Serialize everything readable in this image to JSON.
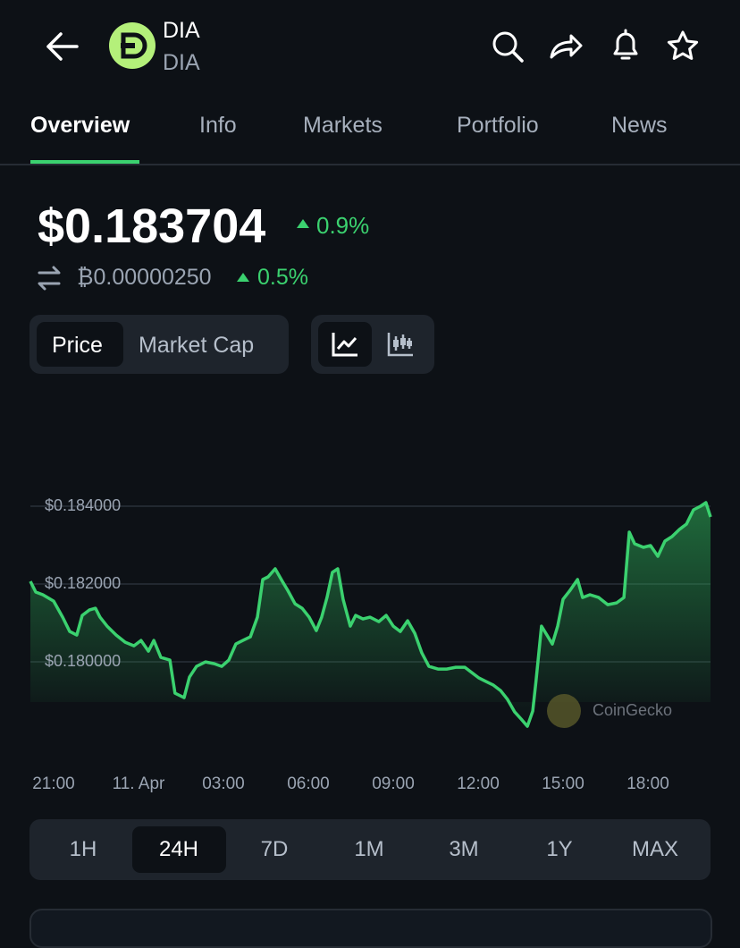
{
  "header": {
    "name": "DIA",
    "symbol": "DIA"
  },
  "tabs": [
    "Overview",
    "Info",
    "Markets",
    "Portfolio",
    "News"
  ],
  "price": {
    "value": "$0.183704",
    "change": "0.9%",
    "btc_value": "₿0.00000250",
    "btc_change": "0.5%"
  },
  "toggles": [
    "Price",
    "Market Cap"
  ],
  "watermark": "CoinGecko",
  "timeframes": [
    "1H",
    "24H",
    "7D",
    "1M",
    "3M",
    "1Y",
    "MAX"
  ],
  "chart_data": {
    "type": "line",
    "color": "#3bd16f",
    "grid": true,
    "x": [
      -0.82,
      -0.63,
      -0.38,
      0,
      0.32,
      0.57,
      0.82,
      1.01,
      1.26,
      1.48,
      1.64,
      1.89,
      2.21,
      2.53,
      2.84,
      3.09,
      3.35,
      3.54,
      3.79,
      4.11,
      4.29,
      4.61,
      4.8,
      5.05,
      5.37,
      5.68,
      5.94,
      6.19,
      6.44,
      6.69,
      6.95,
      7.2,
      7.39,
      7.58,
      7.83,
      8.08,
      8.27,
      8.53,
      8.78,
      9.03,
      9.28,
      9.47,
      9.66,
      9.85,
      10.04,
      10.23,
      10.48,
      10.67,
      10.93,
      11.18,
      11.49,
      11.75,
      12,
      12.25,
      12.51,
      12.76,
      13.01,
      13.26,
      13.58,
      13.89,
      14.21,
      14.53,
      14.78,
      15.03,
      15.28,
      15.54,
      15.79,
      16.04,
      16.29,
      16.55,
      16.74,
      16.93,
      17.05,
      17.24,
      17.43,
      17.62,
      17.81,
      18,
      18.25,
      18.51,
      18.69,
      18.95,
      19.26,
      19.58,
      19.89,
      20.15,
      20.34,
      20.53,
      20.84,
      21.09,
      21.35,
      21.6,
      21.85,
      22.11,
      22.36,
      22.61,
      22.86,
      23.05,
      23.21
    ],
    "values": [
      0.182068,
      0.181792,
      0.181723,
      0.181562,
      0.181148,
      0.18078,
      0.180688,
      0.181194,
      0.181332,
      0.181378,
      0.181148,
      0.180918,
      0.180688,
      0.180504,
      0.180412,
      0.18055,
      0.180274,
      0.18055,
      0.180113,
      0.180044,
      0.179193,
      0.179078,
      0.179607,
      0.179883,
      0.179998,
      0.179952,
      0.179883,
      0.180044,
      0.180458,
      0.18055,
      0.180642,
      0.181148,
      0.182114,
      0.182183,
      0.18239,
      0.182068,
      0.181838,
      0.181493,
      0.181378,
      0.181148,
      0.180803,
      0.181148,
      0.181654,
      0.182298,
      0.18239,
      0.181608,
      0.180918,
      0.181194,
      0.181102,
      0.181148,
      0.181033,
      0.181194,
      0.180918,
      0.18078,
      0.181056,
      0.180734,
      0.180228,
      0.179883,
      0.179814,
      0.179814,
      0.17986,
      0.17986,
      0.179722,
      0.179584,
      0.179492,
      0.1794,
      0.179262,
      0.179032,
      0.17871,
      0.178503,
      0.178342,
      0.178733,
      0.179538,
      0.180918,
      0.180688,
      0.180458,
      0.180918,
      0.181608,
      0.181838,
      0.182114,
      0.181654,
      0.181723,
      0.181654,
      0.18147,
      0.181516,
      0.181654,
      0.183333,
      0.183034,
      0.182942,
      0.182988,
      0.182712,
      0.183103,
      0.183218,
      0.183402,
      0.18354,
      0.183908,
      0.184,
      0.184092,
      0.183724
    ],
    "xlim": [
      -0.82,
      23.21
    ],
    "xticks": [
      {
        "value": 0,
        "label": "21:00"
      },
      {
        "value": 3,
        "label": "11. Apr"
      },
      {
        "value": 6,
        "label": "03:00"
      },
      {
        "value": 9,
        "label": "06:00"
      },
      {
        "value": 12,
        "label": "09:00"
      },
      {
        "value": 15,
        "label": "12:00"
      },
      {
        "value": 18,
        "label": "15:00"
      },
      {
        "value": 21,
        "label": "18:00"
      }
    ],
    "ylim": [
      0.1782,
      0.1842
    ],
    "yticks": [
      {
        "value": 0.184,
        "label": "$0.184000"
      },
      {
        "value": 0.182,
        "label": "$0.182000"
      },
      {
        "value": 0.18,
        "label": "$0.180000"
      }
    ]
  }
}
